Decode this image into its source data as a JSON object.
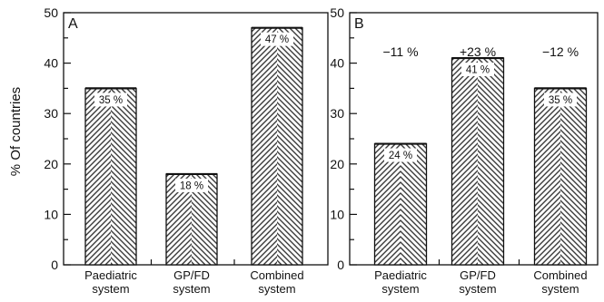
{
  "ylabel": "% Of countries",
  "chart_data": [
    {
      "type": "bar",
      "panel": "A",
      "categories": [
        [
          "Paediatric",
          "system"
        ],
        [
          "GP/FD",
          "system"
        ],
        [
          "Combined",
          "system"
        ]
      ],
      "values": [
        35,
        18,
        47
      ],
      "data_labels": [
        "35 %",
        "18 %",
        "47 %"
      ],
      "ylim": [
        0,
        50
      ],
      "yticks": [
        0,
        10,
        20,
        30,
        40,
        50
      ],
      "ylabel": "% Of countries",
      "grid": false,
      "pattern": "herringbone hatch",
      "colors": {
        "bar_stroke": "#111111",
        "hatch": "#333333"
      }
    },
    {
      "type": "bar",
      "panel": "B",
      "categories": [
        [
          "Paediatric",
          "system"
        ],
        [
          "GP/FD",
          "system"
        ],
        [
          "Combined",
          "system"
        ]
      ],
      "values": [
        24,
        41,
        35
      ],
      "data_labels": [
        "24 %",
        "41 %",
        "35 %"
      ],
      "change_labels": [
        "−11  %",
        "+23  %",
        "−12  %"
      ],
      "ylim": [
        0,
        50
      ],
      "yticks": [
        0,
        10,
        20,
        30,
        40,
        50
      ],
      "grid": false,
      "pattern": "herringbone hatch",
      "colors": {
        "bar_stroke": "#111111",
        "hatch": "#333333"
      }
    }
  ]
}
